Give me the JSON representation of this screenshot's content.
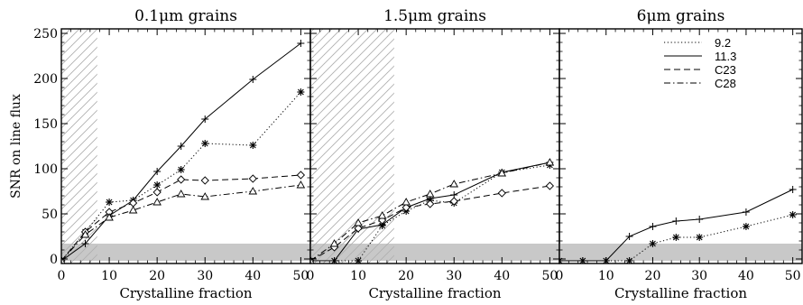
{
  "chart_data": [
    {
      "type": "line",
      "title": "0.1μm grains",
      "xlabel": "Crystalline fraction",
      "ylabel": "SNR on line flux",
      "xlim": [
        0,
        52
      ],
      "ylim": [
        -5,
        255
      ],
      "x_ticks": [
        0,
        10,
        20,
        30,
        40,
        50
      ],
      "y_ticks": [
        0,
        50,
        100,
        150,
        200,
        250
      ],
      "hatched_x_range": [
        0,
        7.5
      ],
      "shaded_y_range": [
        0,
        17
      ],
      "series": [
        {
          "name": "9.2",
          "marker": "asterisk",
          "dash": "dotted",
          "x": [
            0,
            5,
            10,
            15,
            20,
            25,
            30,
            40,
            50
          ],
          "y": [
            -2,
            30,
            63,
            65,
            82,
            99,
            128,
            126,
            185
          ]
        },
        {
          "name": "11.3",
          "marker": "plus",
          "dash": "solid",
          "x": [
            0,
            5,
            10,
            15,
            20,
            25,
            30,
            40,
            50
          ],
          "y": [
            -2,
            17,
            48,
            65,
            97,
            125,
            155,
            199,
            239
          ]
        },
        {
          "name": "C23",
          "marker": "diamond",
          "dash": "dashed",
          "x": [
            0,
            5,
            10,
            15,
            20,
            25,
            30,
            40,
            50
          ],
          "y": [
            -2,
            30,
            52,
            62,
            74,
            88,
            87,
            89,
            93
          ]
        },
        {
          "name": "C28",
          "marker": "triangle",
          "dash": "dashdot",
          "x": [
            0,
            5,
            10,
            15,
            20,
            25,
            30,
            40,
            50
          ],
          "y": [
            -2,
            27,
            46,
            54,
            63,
            72,
            69,
            75,
            82
          ]
        }
      ]
    },
    {
      "type": "line",
      "title": "1.5μm grains",
      "xlabel": "Crystalline fraction",
      "ylabel": "",
      "xlim": [
        0,
        52
      ],
      "ylim": [
        -5,
        255
      ],
      "x_ticks": [
        0,
        10,
        20,
        30,
        40,
        50
      ],
      "y_ticks": [
        0,
        50,
        100,
        150,
        200,
        250
      ],
      "hatched_x_range": [
        0,
        17.5
      ],
      "shaded_y_range": [
        0,
        17
      ],
      "series": [
        {
          "name": "9.2",
          "marker": "asterisk",
          "dash": "dotted",
          "x": [
            0,
            5,
            10,
            15,
            20,
            25,
            30,
            40,
            50
          ],
          "y": [
            -2,
            -2,
            -2,
            37,
            53,
            65,
            62,
            96,
            104
          ]
        },
        {
          "name": "11.3",
          "marker": "plus",
          "dash": "solid",
          "x": [
            0,
            5,
            10,
            15,
            20,
            25,
            30,
            40,
            50
          ],
          "y": [
            -2,
            -2,
            33,
            38,
            57,
            67,
            71,
            96,
            107
          ]
        },
        {
          "name": "C23",
          "marker": "diamond",
          "dash": "dashed",
          "x": [
            0,
            5,
            10,
            15,
            20,
            25,
            30,
            40,
            50
          ],
          "y": [
            -2,
            13,
            34,
            43,
            57,
            61,
            64,
            73,
            81
          ]
        },
        {
          "name": "C28",
          "marker": "triangle",
          "dash": "dashdot",
          "x": [
            0,
            5,
            10,
            15,
            20,
            25,
            30,
            40,
            50
          ],
          "y": [
            -2,
            17,
            40,
            48,
            63,
            72,
            83,
            95,
            107
          ]
        }
      ]
    },
    {
      "type": "line",
      "title": "6μm grains",
      "xlabel": "Crystalline fraction",
      "ylabel": "",
      "xlim": [
        0,
        52
      ],
      "ylim": [
        -5,
        255
      ],
      "x_ticks": [
        0,
        10,
        20,
        30,
        40,
        50
      ],
      "y_ticks": [
        0,
        50,
        100,
        150,
        200,
        250
      ],
      "shaded_y_range": [
        0,
        17
      ],
      "legend": "top-right",
      "series": [
        {
          "name": "9.2",
          "marker": "asterisk",
          "dash": "dotted",
          "x": [
            0,
            5,
            10,
            15,
            20,
            25,
            30,
            40,
            50
          ],
          "y": [
            -2,
            -2,
            -2,
            -2,
            17,
            24,
            24,
            36,
            49
          ]
        },
        {
          "name": "11.3",
          "marker": "plus",
          "dash": "solid",
          "x": [
            0,
            5,
            10,
            15,
            20,
            25,
            30,
            40,
            50
          ],
          "y": [
            -2,
            -2,
            -2,
            25,
            36,
            42,
            44,
            52,
            77
          ]
        },
        {
          "name": "C23",
          "marker": "diamond",
          "dash": "dashed",
          "x": [],
          "y": []
        },
        {
          "name": "C28",
          "marker": "triangle",
          "dash": "dashdot",
          "x": [],
          "y": []
        }
      ]
    }
  ]
}
